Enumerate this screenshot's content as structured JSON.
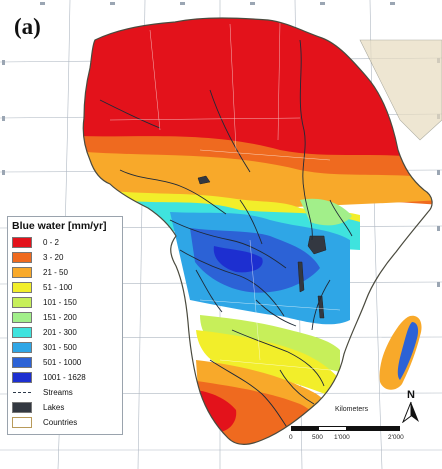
{
  "figure": {
    "panel_label": "(a)"
  },
  "legend": {
    "title": "Blue water [mm/yr]",
    "classes": [
      {
        "label": "0 - 2",
        "color": "#e3121b"
      },
      {
        "label": "3 - 20",
        "color": "#ef6a1f"
      },
      {
        "label": "21 - 50",
        "color": "#f8a92a"
      },
      {
        "label": "51 - 100",
        "color": "#f2ee2a"
      },
      {
        "label": "101 - 150",
        "color": "#c7ef5a"
      },
      {
        "label": "151 - 200",
        "color": "#a2ef8a"
      },
      {
        "label": "201 - 300",
        "color": "#3fe3de"
      },
      {
        "label": "301 - 500",
        "color": "#2fa6e6"
      },
      {
        "label": "501 - 1000",
        "color": "#2c62d6"
      },
      {
        "label": "1001 - 1628",
        "color": "#1d2fd0"
      }
    ],
    "streams_label": "Streams",
    "lakes_label": "Lakes",
    "lakes_color": "#333841",
    "countries_label": "Countries",
    "countries_color": "#e0d3a6"
  },
  "scale": {
    "unit": "Kilometers",
    "ticks": [
      "0",
      "500",
      "1'000",
      "2'000"
    ]
  },
  "north_arrow": {
    "letter": "N"
  },
  "colors": {
    "sea": "#ffffff",
    "graticule": "#9ba6b3",
    "land_outline": "#4a4a3e",
    "stream": "#1f2a38"
  }
}
